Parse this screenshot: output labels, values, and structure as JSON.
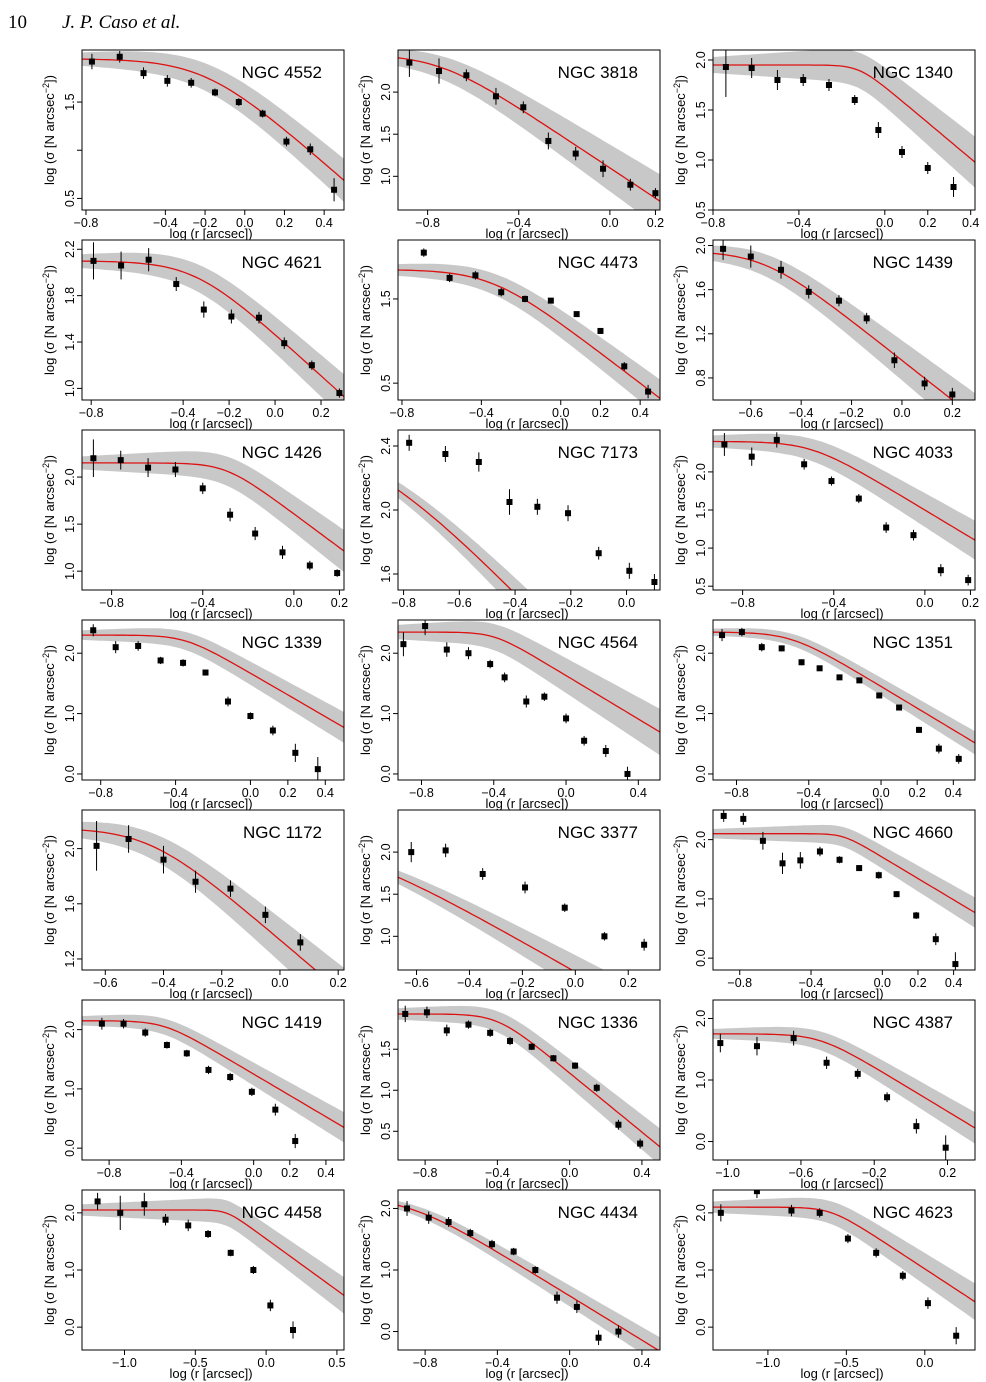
{
  "page": {
    "number": "10",
    "authors": "J. P. Caso et al."
  },
  "colors": {
    "fit_line": "#dd1111",
    "band": "#c8c8c8",
    "points": "#000000",
    "frame": "#000000"
  },
  "axis_text": {
    "xlabel": "log (r [arcsec])",
    "ylabel_pre": "log (σ [N arcsec",
    "ylabel_sup": "−2",
    "ylabel_post": "])"
  },
  "chart_data": [
    {
      "type": "scatter",
      "title": "NGC 4552",
      "xlim": [
        -0.82,
        0.5
      ],
      "ylim": [
        0.38,
        2.04
      ],
      "xticks": [
        -0.8,
        -0.4,
        -0.2,
        0.0,
        0.2,
        0.4
      ],
      "yticks": [
        0.5,
        1.0,
        1.5
      ],
      "yticklabels": [
        "0.5",
        "",
        "1.5"
      ],
      "x": [
        -0.77,
        -0.63,
        -0.51,
        -0.39,
        -0.27,
        -0.15,
        -0.03,
        0.09,
        0.21,
        0.33,
        0.45
      ],
      "y": [
        1.92,
        1.97,
        1.8,
        1.72,
        1.7,
        1.6,
        1.5,
        1.38,
        1.09,
        1.01,
        0.59
      ],
      "yerr": [
        0.08,
        0.06,
        0.06,
        0.06,
        0.05,
        0.04,
        0.04,
        0.04,
        0.05,
        0.06,
        0.12
      ],
      "fit": {
        "a": 1.95,
        "r0": -0.2,
        "s": 0.7
      },
      "band": 0.07
    },
    {
      "type": "scatter",
      "title": "NGC 3818",
      "xlim": [
        -0.93,
        0.22
      ],
      "ylim": [
        0.6,
        2.5
      ],
      "xticks": [
        -0.8,
        -0.4,
        0.0,
        0.2
      ],
      "yticks": [
        1.0,
        1.5,
        2.0
      ],
      "x": [
        -0.88,
        -0.75,
        -0.63,
        -0.5,
        -0.38,
        -0.27,
        -0.15,
        -0.03,
        0.09,
        0.2
      ],
      "y": [
        2.35,
        2.25,
        2.2,
        1.95,
        1.82,
        1.42,
        1.27,
        1.09,
        0.9,
        0.8
      ],
      "yerr": [
        0.17,
        0.15,
        0.07,
        0.1,
        0.07,
        0.1,
        0.08,
        0.1,
        0.07,
        0.06
      ],
      "fit": {
        "a": 2.45,
        "r0": -0.75,
        "s": 0.55
      },
      "band": 0.1
    },
    {
      "type": "scatter",
      "title": "NGC 1340",
      "xlim": [
        -0.8,
        0.42
      ],
      "ylim": [
        0.5,
        2.1
      ],
      "xticks": [
        -0.8,
        -0.4,
        0.0,
        0.2,
        0.4
      ],
      "yticks": [
        0.5,
        1.0,
        1.5,
        2.0
      ],
      "x": [
        -0.74,
        -0.62,
        -0.5,
        -0.38,
        -0.26,
        -0.14,
        -0.03,
        0.08,
        0.2,
        0.32
      ],
      "y": [
        1.93,
        1.92,
        1.8,
        1.8,
        1.75,
        1.6,
        1.3,
        1.08,
        0.92,
        0.73
      ],
      "yerr": [
        0.3,
        0.1,
        0.1,
        0.06,
        0.06,
        0.05,
        0.08,
        0.06,
        0.06,
        0.1
      ],
      "fit": {
        "a": 1.95,
        "r0": -0.12,
        "s": 0.2
      },
      "band": 0.08
    },
    {
      "type": "scatter",
      "title": "NGC 4621",
      "xlim": [
        -0.84,
        0.3
      ],
      "ylim": [
        0.9,
        2.28
      ],
      "xticks": [
        -0.8,
        -0.4,
        -0.2,
        0.0,
        0.2
      ],
      "yticks": [
        1.0,
        1.4,
        1.8,
        2.2
      ],
      "x": [
        -0.79,
        -0.67,
        -0.55,
        -0.43,
        -0.31,
        -0.19,
        -0.07,
        0.04,
        0.16,
        0.28
      ],
      "y": [
        2.1,
        2.06,
        2.11,
        1.9,
        1.68,
        1.62,
        1.61,
        1.39,
        1.2,
        0.96
      ],
      "yerr": [
        0.16,
        0.12,
        0.1,
        0.06,
        0.07,
        0.06,
        0.05,
        0.05,
        0.04,
        0.04
      ],
      "fit": {
        "a": 2.1,
        "r0": -0.35,
        "s": 0.5
      },
      "band": 0.06
    },
    {
      "type": "scatter",
      "title": "NGC 4473",
      "xlim": [
        -0.82,
        0.5
      ],
      "ylim": [
        0.3,
        2.2
      ],
      "xticks": [
        -0.8,
        -0.4,
        0.0,
        0.2,
        0.4
      ],
      "yticks": [
        0.5,
        1.5
      ],
      "x": [
        -0.69,
        -0.56,
        -0.43,
        -0.3,
        -0.18,
        -0.05,
        0.08,
        0.2,
        0.32,
        0.44
      ],
      "y": [
        2.05,
        1.75,
        1.78,
        1.58,
        1.5,
        1.48,
        1.32,
        1.12,
        0.7,
        0.4
      ],
      "yerr": [
        0.05,
        0.05,
        0.05,
        0.05,
        0.04,
        0.03,
        0.03,
        0.03,
        0.05,
        0.08
      ],
      "fit": {
        "a": 1.85,
        "r0": -0.35,
        "s": 0.6
      },
      "band": 0.07
    },
    {
      "type": "scatter",
      "title": "NGC 1439",
      "xlim": [
        -0.75,
        0.29
      ],
      "ylim": [
        0.6,
        2.05
      ],
      "xticks": [
        -0.6,
        -0.4,
        -0.2,
        0.0,
        0.2
      ],
      "yticks": [
        0.8,
        1.2,
        1.6,
        2.0
      ],
      "x": [
        -0.71,
        -0.6,
        -0.48,
        -0.37,
        -0.25,
        -0.14,
        -0.03,
        0.09,
        0.2
      ],
      "y": [
        1.97,
        1.9,
        1.78,
        1.58,
        1.5,
        1.34,
        0.96,
        0.75,
        0.65
      ],
      "yerr": [
        0.1,
        0.1,
        0.08,
        0.06,
        0.05,
        0.05,
        0.07,
        0.06,
        0.06
      ],
      "fit": {
        "a": 1.95,
        "r0": -0.55,
        "s": 0.45
      },
      "band": 0.07
    },
    {
      "type": "scatter",
      "title": "NGC 1426",
      "xlim": [
        -0.93,
        0.22
      ],
      "ylim": [
        0.8,
        2.5
      ],
      "xticks": [
        -0.8,
        -0.4,
        0.0,
        0.2
      ],
      "yticks": [
        1.0,
        1.5,
        2.0
      ],
      "x": [
        -0.88,
        -0.76,
        -0.64,
        -0.52,
        -0.4,
        -0.28,
        -0.17,
        -0.05,
        0.07,
        0.19
      ],
      "y": [
        2.2,
        2.18,
        2.1,
        2.08,
        1.88,
        1.6,
        1.4,
        1.2,
        1.06,
        0.98
      ],
      "yerr": [
        0.2,
        0.1,
        0.1,
        0.08,
        0.06,
        0.07,
        0.07,
        0.07,
        0.05,
        0.04
      ],
      "fit": {
        "a": 2.15,
        "r0": -0.3,
        "s": 0.3
      },
      "band": 0.07
    },
    {
      "type": "scatter",
      "title": "NGC 7173",
      "xlim": [
        -0.82,
        0.12
      ],
      "ylim": [
        1.5,
        2.5
      ],
      "xticks": [
        -0.8,
        -0.6,
        -0.4,
        -0.2,
        0.0
      ],
      "yticks": [
        1.6,
        2.0,
        2.4
      ],
      "x": [
        -0.78,
        -0.65,
        -0.53,
        -0.42,
        -0.32,
        -0.21,
        -0.1,
        0.01,
        0.1
      ],
      "y": [
        2.42,
        2.35,
        2.3,
        2.05,
        2.02,
        1.98,
        1.73,
        1.62,
        1.55
      ],
      "yerr": [
        0.05,
        0.05,
        0.06,
        0.08,
        0.05,
        0.05,
        0.04,
        0.05,
        0.05
      ],
      "fit": {
        "a": 2.48,
        "r0": -0.95,
        "s": 0.8
      },
      "band": 0.05
    },
    {
      "type": "scatter",
      "title": "NGC 4033",
      "xlim": [
        -0.93,
        0.22
      ],
      "ylim": [
        0.45,
        2.55
      ],
      "xticks": [
        -0.8,
        -0.4,
        0.0,
        0.2
      ],
      "yticks": [
        0.5,
        1.0,
        1.5,
        2.0
      ],
      "x": [
        -0.88,
        -0.76,
        -0.65,
        -0.53,
        -0.41,
        -0.29,
        -0.17,
        -0.05,
        0.07,
        0.19
      ],
      "y": [
        2.36,
        2.2,
        2.42,
        2.1,
        1.88,
        1.65,
        1.27,
        1.17,
        0.71,
        0.58
      ],
      "yerr": [
        0.15,
        0.12,
        0.1,
        0.07,
        0.06,
        0.06,
        0.07,
        0.07,
        0.08,
        0.07
      ],
      "fit": {
        "a": 2.4,
        "r0": -0.5,
        "s": 0.4
      },
      "band": 0.08
    },
    {
      "type": "scatter",
      "title": "NGC 1339",
      "xlim": [
        -0.9,
        0.5
      ],
      "ylim": [
        -0.1,
        2.55
      ],
      "xticks": [
        -0.8,
        -0.4,
        0.0,
        0.2,
        0.4
      ],
      "yticks": [
        0.0,
        1.0,
        2.0
      ],
      "x": [
        -0.84,
        -0.72,
        -0.6,
        -0.48,
        -0.36,
        -0.24,
        -0.12,
        0.0,
        0.12,
        0.24,
        0.36
      ],
      "y": [
        2.38,
        2.1,
        2.12,
        1.88,
        1.84,
        1.68,
        1.2,
        0.96,
        0.72,
        0.35,
        0.08
      ],
      "yerr": [
        0.1,
        0.1,
        0.08,
        0.06,
        0.06,
        0.05,
        0.08,
        0.06,
        0.08,
        0.15,
        0.2
      ],
      "fit": {
        "a": 2.3,
        "r0": -0.35,
        "s": 0.35
      },
      "band": 0.08
    },
    {
      "type": "scatter",
      "title": "NGC 4564",
      "xlim": [
        -0.93,
        0.52
      ],
      "ylim": [
        -0.1,
        2.55
      ],
      "xticks": [
        -0.8,
        -0.4,
        0.0,
        0.4
      ],
      "yticks": [
        0.0,
        1.0,
        2.0
      ],
      "x": [
        -0.9,
        -0.78,
        -0.66,
        -0.54,
        -0.42,
        -0.34,
        -0.22,
        -0.12,
        0.0,
        0.1,
        0.22,
        0.34
      ],
      "y": [
        2.15,
        2.45,
        2.06,
        2.0,
        1.82,
        1.6,
        1.2,
        1.28,
        0.92,
        0.55,
        0.38,
        0.0
      ],
      "yerr": [
        0.2,
        0.15,
        0.12,
        0.1,
        0.07,
        0.08,
        0.1,
        0.07,
        0.08,
        0.08,
        0.1,
        0.12
      ],
      "fit": {
        "a": 2.35,
        "r0": -0.4,
        "s": 0.3
      },
      "band": 0.12
    },
    {
      "type": "scatter",
      "title": "NGC 1351",
      "xlim": [
        -0.93,
        0.52
      ],
      "ylim": [
        -0.1,
        2.55
      ],
      "xticks": [
        -0.8,
        -0.4,
        0.0,
        0.2,
        0.4
      ],
      "yticks": [
        0.0,
        1.0,
        2.0
      ],
      "x": [
        -0.88,
        -0.77,
        -0.66,
        -0.55,
        -0.44,
        -0.34,
        -0.23,
        -0.12,
        -0.01,
        0.1,
        0.21,
        0.32,
        0.43
      ],
      "y": [
        2.3,
        2.35,
        2.1,
        2.08,
        1.85,
        1.75,
        1.6,
        1.55,
        1.3,
        1.1,
        0.73,
        0.42,
        0.25
      ],
      "yerr": [
        0.1,
        0.07,
        0.07,
        0.05,
        0.05,
        0.04,
        0.04,
        0.04,
        0.04,
        0.04,
        0.05,
        0.08,
        0.08
      ],
      "fit": {
        "a": 2.35,
        "r0": -0.5,
        "s": 0.45
      },
      "band": 0.06
    },
    {
      "type": "scatter",
      "title": "NGC 1172",
      "xlim": [
        -0.68,
        0.22
      ],
      "ylim": [
        1.12,
        2.28
      ],
      "xticks": [
        -0.6,
        -0.4,
        -0.2,
        0.0,
        0.2
      ],
      "yticks": [
        1.2,
        1.6,
        2.0
      ],
      "x": [
        -0.63,
        -0.52,
        -0.4,
        -0.29,
        -0.17,
        -0.05,
        0.07
      ],
      "y": [
        2.02,
        2.07,
        1.92,
        1.76,
        1.71,
        1.52,
        1.32
      ],
      "yerr": [
        0.18,
        0.1,
        0.1,
        0.08,
        0.06,
        0.06,
        0.06
      ],
      "fit": {
        "a": 2.15,
        "r0": -0.45,
        "s": 0.45
      },
      "band": 0.06
    },
    {
      "type": "scatter",
      "title": "NGC 3377",
      "xlim": [
        -0.67,
        0.32
      ],
      "ylim": [
        0.6,
        2.5
      ],
      "xticks": [
        -0.6,
        -0.4,
        -0.2,
        0.0,
        0.2
      ],
      "yticks": [
        1.0,
        1.5,
        2.0
      ],
      "x": [
        -0.62,
        -0.49,
        -0.35,
        -0.19,
        -0.04,
        0.11,
        0.26
      ],
      "y": [
        2.0,
        2.02,
        1.74,
        1.58,
        1.34,
        1.0,
        0.9
      ],
      "yerr": [
        0.12,
        0.08,
        0.07,
        0.07,
        0.05,
        0.05,
        0.07
      ],
      "fit": {
        "a": 2.2,
        "r0": -0.9,
        "s": 0.85
      },
      "band": 0.08
    },
    {
      "type": "scatter",
      "title": "NGC 4660",
      "xlim": [
        -0.95,
        0.52
      ],
      "ylim": [
        -0.2,
        2.5
      ],
      "xticks": [
        -0.8,
        -0.4,
        0.0,
        0.2,
        0.4
      ],
      "yticks": [
        0.0,
        1.0,
        2.0
      ],
      "x": [
        -0.89,
        -0.78,
        -0.67,
        -0.56,
        -0.46,
        -0.35,
        -0.24,
        -0.13,
        -0.02,
        0.08,
        0.19,
        0.3,
        0.41
      ],
      "y": [
        2.4,
        2.35,
        1.98,
        1.6,
        1.65,
        1.8,
        1.66,
        1.52,
        1.4,
        1.08,
        0.72,
        0.32,
        -0.1
      ],
      "yerr": [
        0.1,
        0.1,
        0.15,
        0.18,
        0.14,
        0.08,
        0.06,
        0.05,
        0.06,
        0.05,
        0.06,
        0.1,
        0.2
      ],
      "fit": {
        "a": 2.1,
        "r0": -0.22,
        "s": 0.2
      },
      "band": 0.08
    },
    {
      "type": "scatter",
      "title": "NGC 1419",
      "xlim": [
        -0.95,
        0.5
      ],
      "ylim": [
        -0.2,
        2.5
      ],
      "xticks": [
        -0.8,
        -0.4,
        0.0,
        0.2,
        0.4
      ],
      "yticks": [
        0.0,
        1.0,
        2.0
      ],
      "x": [
        -0.84,
        -0.72,
        -0.6,
        -0.48,
        -0.37,
        -0.25,
        -0.13,
        -0.01,
        0.12,
        0.23
      ],
      "y": [
        2.1,
        2.1,
        1.95,
        1.74,
        1.6,
        1.32,
        1.2,
        0.95,
        0.65,
        0.12
      ],
      "yerr": [
        0.1,
        0.08,
        0.07,
        0.06,
        0.06,
        0.07,
        0.07,
        0.07,
        0.1,
        0.12
      ],
      "fit": {
        "a": 2.15,
        "r0": -0.5,
        "s": 0.35
      },
      "band": 0.08
    },
    {
      "type": "scatter",
      "title": "NGC 1336",
      "xlim": [
        -0.95,
        0.5
      ],
      "ylim": [
        0.15,
        2.1
      ],
      "xticks": [
        -0.8,
        -0.4,
        0.0,
        0.4
      ],
      "yticks": [
        0.5,
        1.0,
        1.5
      ],
      "x": [
        -0.91,
        -0.79,
        -0.68,
        -0.56,
        -0.44,
        -0.33,
        -0.21,
        -0.09,
        0.03,
        0.15,
        0.27,
        0.39
      ],
      "y": [
        1.93,
        1.95,
        1.73,
        1.8,
        1.7,
        1.6,
        1.53,
        1.39,
        1.3,
        1.03,
        0.58,
        0.35
      ],
      "yerr": [
        0.1,
        0.07,
        0.07,
        0.05,
        0.05,
        0.05,
        0.04,
        0.04,
        0.04,
        0.05,
        0.06,
        0.06
      ],
      "fit": {
        "a": 1.93,
        "r0": -0.4,
        "s": 0.35
      },
      "band": 0.07
    },
    {
      "type": "scatter",
      "title": "NGC 4387",
      "xlim": [
        -1.08,
        0.35
      ],
      "ylim": [
        -0.3,
        2.3
      ],
      "xticks": [
        -1.0,
        -0.6,
        -0.2,
        0.2
      ],
      "yticks": [
        0.0,
        1.0,
        2.0
      ],
      "x": [
        -1.04,
        -0.84,
        -0.64,
        -0.46,
        -0.29,
        -0.13,
        0.03,
        0.19
      ],
      "y": [
        1.6,
        1.55,
        1.68,
        1.28,
        1.1,
        0.72,
        0.25,
        -0.1
      ],
      "yerr": [
        0.15,
        0.15,
        0.12,
        0.1,
        0.08,
        0.08,
        0.12,
        0.2
      ],
      "fit": {
        "a": 1.75,
        "r0": -0.5,
        "s": 0.4
      },
      "band": 0.08
    },
    {
      "type": "scatter",
      "title": "NGC 4458",
      "xlim": [
        -1.3,
        0.55
      ],
      "ylim": [
        -0.4,
        2.4
      ],
      "xticks": [
        -1.0,
        -0.5,
        0.0,
        0.5
      ],
      "yticks": [
        0.0,
        1.0,
        2.0
      ],
      "x": [
        -1.19,
        -1.03,
        -0.86,
        -0.71,
        -0.55,
        -0.41,
        -0.25,
        -0.09,
        0.03,
        0.19
      ],
      "y": [
        2.2,
        2.0,
        2.15,
        1.88,
        1.78,
        1.63,
        1.3,
        1.0,
        0.38,
        -0.05
      ],
      "yerr": [
        0.15,
        0.3,
        0.2,
        0.1,
        0.1,
        0.07,
        0.06,
        0.07,
        0.1,
        0.15
      ],
      "fit": {
        "a": 2.05,
        "r0": -0.28,
        "s": 0.2
      },
      "band": 0.1
    },
    {
      "type": "scatter",
      "title": "NGC 4434",
      "xlim": [
        -0.95,
        0.5
      ],
      "ylim": [
        -0.3,
        2.3
      ],
      "xticks": [
        -0.8,
        -0.4,
        0.0,
        0.4
      ],
      "yticks": [
        0.0,
        1.0,
        2.0
      ],
      "x": [
        -0.9,
        -0.78,
        -0.67,
        -0.55,
        -0.43,
        -0.31,
        -0.19,
        -0.07,
        0.04,
        0.16,
        0.27
      ],
      "y": [
        2.0,
        1.85,
        1.78,
        1.6,
        1.42,
        1.3,
        1.0,
        0.55,
        0.4,
        -0.1,
        0.0
      ],
      "yerr": [
        0.12,
        0.1,
        0.08,
        0.07,
        0.07,
        0.06,
        0.06,
        0.1,
        0.1,
        0.12,
        0.1
      ],
      "fit": {
        "a": 2.2,
        "r0": -0.9,
        "s": 0.7
      },
      "band": 0.07
    },
    {
      "type": "scatter",
      "title": "NGC 4623",
      "xlim": [
        -1.35,
        0.32
      ],
      "ylim": [
        -0.4,
        2.4
      ],
      "xticks": [
        -1.0,
        -0.5,
        0.0
      ],
      "yticks": [
        0.0,
        1.0,
        2.0
      ],
      "x": [
        -1.3,
        -1.07,
        -0.85,
        -0.67,
        -0.49,
        -0.31,
        -0.14,
        0.02,
        0.2
      ],
      "y": [
        2.0,
        2.38,
        2.04,
        2.0,
        1.55,
        1.3,
        0.9,
        0.42,
        -0.15
      ],
      "yerr": [
        0.15,
        0.12,
        0.1,
        0.08,
        0.08,
        0.08,
        0.08,
        0.1,
        0.15
      ],
      "fit": {
        "a": 2.1,
        "r0": -0.6,
        "s": 0.35
      },
      "band": 0.1
    }
  ]
}
